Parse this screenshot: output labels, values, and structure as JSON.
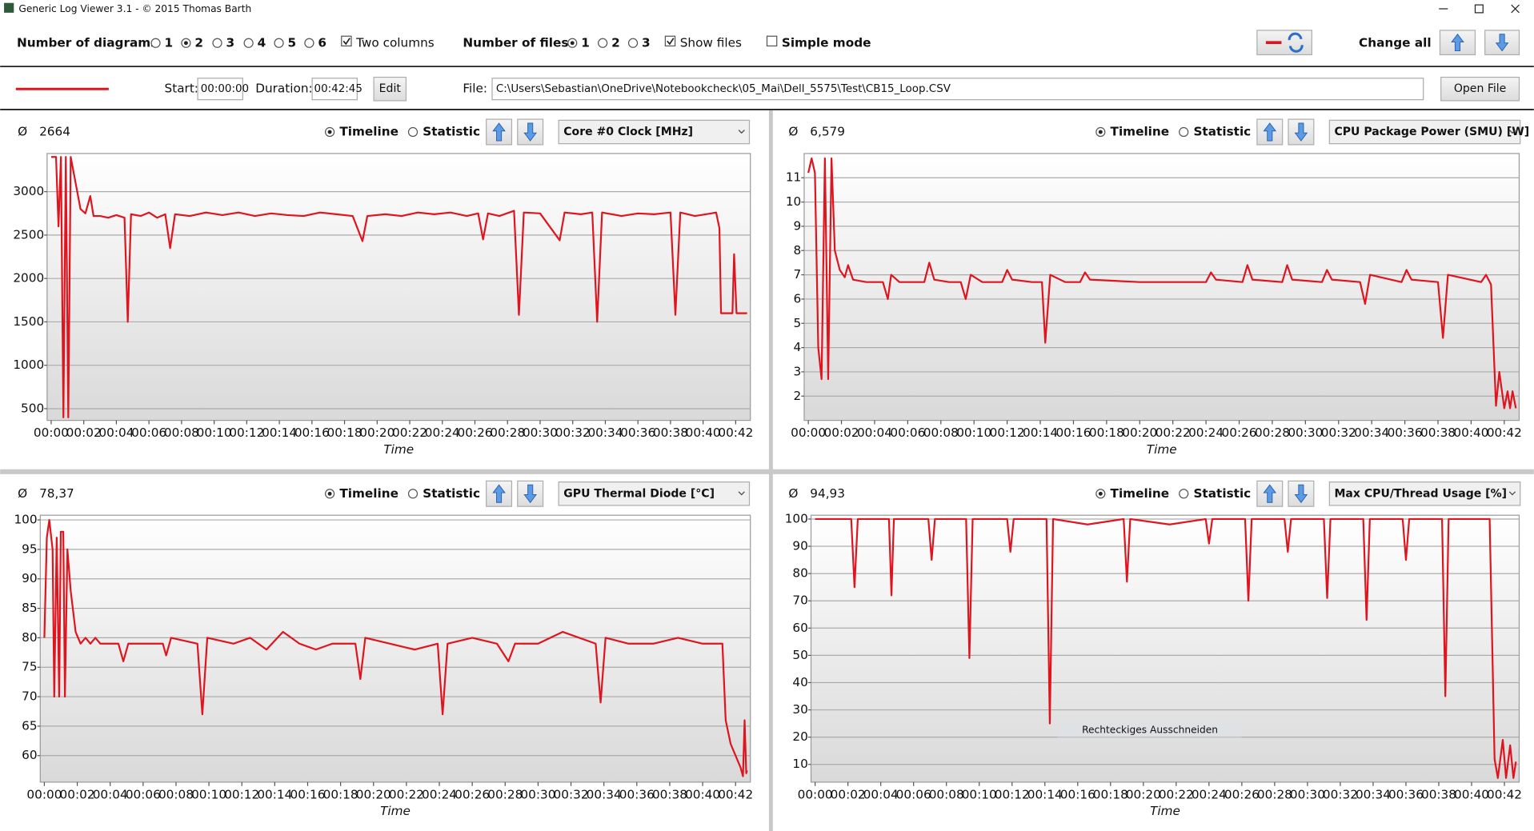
{
  "window": {
    "title": "Generic Log Viewer 3.1 - © 2015 Thomas Barth"
  },
  "toolbar": {
    "diagrams_label": "Number of diagrams",
    "diagram_options": [
      "1",
      "2",
      "3",
      "4",
      "5",
      "6"
    ],
    "two_columns": "Two columns",
    "files_label": "Number of files",
    "file_options": [
      "1",
      "2",
      "3"
    ],
    "show_files": "Show files",
    "simple_mode": "Simple mode",
    "change_all": "Change all"
  },
  "file_bar": {
    "start_label": "Start:",
    "start": "00:00:00",
    "duration_label": "Duration:",
    "duration": "00:42:45",
    "edit": "Edit",
    "file_label": "File:",
    "file_path": "C:\\Users\\Sebastian\\OneDrive\\Notebookcheck\\05_Mai\\Dell_5575\\Test\\CB15_Loop.CSV",
    "open_file": "Open File"
  },
  "chart_data": [
    {
      "type": "line",
      "average_label": "Ø",
      "average": "2664",
      "timeline": "Timeline",
      "statistic": "Statistic",
      "title": "Core #0 Clock [MHz]",
      "xlabel": "Time",
      "grid": true,
      "xlim": [
        -0.25,
        42.9
      ],
      "xticks": [
        {
          "value": 0,
          "label": "00:00"
        },
        {
          "value": 2,
          "label": "00:02"
        },
        {
          "value": 4,
          "label": "00:04"
        },
        {
          "value": 6,
          "label": "00:06"
        },
        {
          "value": 8,
          "label": "00:08"
        },
        {
          "value": 10,
          "label": "00:10"
        },
        {
          "value": 12,
          "label": "00:12"
        },
        {
          "value": 14,
          "label": "00:14"
        },
        {
          "value": 16,
          "label": "00:16"
        },
        {
          "value": 18,
          "label": "00:18"
        },
        {
          "value": 20,
          "label": "00:20"
        },
        {
          "value": 22,
          "label": "00:22"
        },
        {
          "value": 24,
          "label": "00:24"
        },
        {
          "value": 26,
          "label": "00:26"
        },
        {
          "value": 28,
          "label": "00:28"
        },
        {
          "value": 30,
          "label": "00:30"
        },
        {
          "value": 32,
          "label": "00:32"
        },
        {
          "value": 34,
          "label": "00:34"
        },
        {
          "value": 36,
          "label": "00:36"
        },
        {
          "value": 38,
          "label": "00:38"
        },
        {
          "value": 40,
          "label": "00:40"
        },
        {
          "value": 42,
          "label": "00:42"
        }
      ],
      "ylim": [
        365,
        3440
      ],
      "yticks": [
        500,
        1000,
        1500,
        2000,
        2500,
        3000
      ],
      "x": [
        0,
        0.3,
        0.45,
        0.6,
        0.75,
        0.9,
        1.05,
        1.2,
        1.5,
        1.8,
        2.1,
        2.4,
        2.6,
        3,
        3.5,
        4,
        4.5,
        4.7,
        4.9,
        5.5,
        6,
        6.5,
        7,
        7.3,
        7.6,
        8.5,
        9.5,
        10.5,
        11.5,
        12.5,
        13.5,
        14.5,
        15.5,
        16.5,
        17.5,
        18.5,
        19.1,
        19.4,
        20.5,
        21.5,
        22.5,
        23.5,
        24.5,
        25.5,
        26.2,
        26.5,
        26.8,
        27.5,
        28.4,
        28.7,
        29,
        30,
        31.2,
        31.5,
        32.5,
        33.2,
        33.5,
        33.8,
        35,
        36,
        37,
        38,
        38.3,
        38.6,
        39.5,
        40.5,
        40.8,
        41,
        41.1,
        41.8,
        41.9,
        42.05,
        42.7
      ],
      "series": [
        {
          "color": "#e0141e",
          "values": [
            3400,
            3400,
            2600,
            3400,
            400,
            3400,
            400,
            3400,
            3100,
            2800,
            2750,
            2950,
            2720,
            2720,
            2700,
            2730,
            2700,
            1500,
            2740,
            2720,
            2760,
            2700,
            2740,
            2350,
            2740,
            2720,
            2760,
            2730,
            2760,
            2720,
            2750,
            2730,
            2720,
            2760,
            2740,
            2720,
            2430,
            2720,
            2740,
            2720,
            2760,
            2740,
            2760,
            2720,
            2750,
            2450,
            2750,
            2720,
            2780,
            1580,
            2760,
            2750,
            2440,
            2760,
            2740,
            2760,
            1500,
            2760,
            2720,
            2750,
            2740,
            2760,
            1580,
            2760,
            2720,
            2750,
            2760,
            2580,
            1600,
            1600,
            2280,
            1600,
            1600
          ]
        }
      ]
    },
    {
      "type": "line",
      "average_label": "Ø",
      "average": "6,579",
      "timeline": "Timeline",
      "statistic": "Statistic",
      "title": "CPU Package Power (SMU) [W]",
      "xlabel": "Time",
      "grid": true,
      "xlim": [
        -0.25,
        42.9
      ],
      "xticks": [
        {
          "value": 0,
          "label": "00:00"
        },
        {
          "value": 2,
          "label": "00:02"
        },
        {
          "value": 4,
          "label": "00:04"
        },
        {
          "value": 6,
          "label": "00:06"
        },
        {
          "value": 8,
          "label": "00:08"
        },
        {
          "value": 10,
          "label": "00:10"
        },
        {
          "value": 12,
          "label": "00:12"
        },
        {
          "value": 14,
          "label": "00:14"
        },
        {
          "value": 16,
          "label": "00:16"
        },
        {
          "value": 18,
          "label": "00:18"
        },
        {
          "value": 20,
          "label": "00:20"
        },
        {
          "value": 22,
          "label": "00:22"
        },
        {
          "value": 24,
          "label": "00:24"
        },
        {
          "value": 26,
          "label": "00:26"
        },
        {
          "value": 28,
          "label": "00:28"
        },
        {
          "value": 30,
          "label": "00:30"
        },
        {
          "value": 32,
          "label": "00:32"
        },
        {
          "value": 34,
          "label": "00:34"
        },
        {
          "value": 36,
          "label": "00:36"
        },
        {
          "value": 38,
          "label": "00:38"
        },
        {
          "value": 40,
          "label": "00:40"
        },
        {
          "value": 42,
          "label": "00:42"
        }
      ],
      "ylim": [
        1,
        12
      ],
      "yticks": [
        2,
        3,
        4,
        5,
        6,
        7,
        8,
        9,
        10,
        11
      ],
      "x": [
        0,
        0.2,
        0.4,
        0.6,
        0.8,
        1.0,
        1.2,
        1.4,
        1.6,
        1.9,
        2.2,
        2.4,
        2.7,
        3.5,
        4.5,
        4.8,
        5.0,
        5.5,
        6.5,
        7.0,
        7.3,
        7.6,
        8.5,
        9.2,
        9.5,
        9.8,
        10.5,
        11.7,
        12.0,
        12.3,
        13.5,
        14.1,
        14.3,
        14.6,
        15.5,
        16.4,
        16.7,
        17.0,
        20,
        24.0,
        24.3,
        24.6,
        26.2,
        26.5,
        26.8,
        28.6,
        28.9,
        29.2,
        31.0,
        31.3,
        31.6,
        33.3,
        33.6,
        33.9,
        35.8,
        36.1,
        36.4,
        38.0,
        38.3,
        38.6,
        40.6,
        40.9,
        41.2,
        41.5,
        41.7,
        42.0,
        42.2,
        42.35,
        42.5,
        42.7
      ],
      "series": [
        {
          "color": "#e0141e",
          "values": [
            11.2,
            11.8,
            11.2,
            4,
            2.7,
            11.8,
            2.7,
            11.8,
            8,
            7.2,
            6.9,
            7.4,
            6.8,
            6.7,
            6.7,
            6.0,
            7.0,
            6.7,
            6.7,
            6.7,
            7.5,
            6.8,
            6.7,
            6.7,
            6.0,
            7.0,
            6.7,
            6.7,
            7.2,
            6.8,
            6.7,
            6.7,
            4.2,
            7.0,
            6.7,
            6.7,
            7.1,
            6.8,
            6.7,
            6.7,
            7.1,
            6.8,
            6.7,
            7.4,
            6.8,
            6.7,
            7.4,
            6.8,
            6.7,
            7.2,
            6.8,
            6.7,
            5.8,
            7.0,
            6.7,
            7.2,
            6.8,
            6.7,
            4.4,
            7.0,
            6.7,
            7.0,
            6.6,
            1.6,
            3.0,
            1.5,
            2.2,
            1.5,
            2.2,
            1.5
          ]
        }
      ]
    },
    {
      "type": "line",
      "average_label": "Ø",
      "average": "78,37",
      "timeline": "Timeline",
      "statistic": "Statistic",
      "title": "GPU Thermal Diode [°C]",
      "xlabel": "Time",
      "grid": true,
      "xlim": [
        -0.25,
        42.9
      ],
      "xticks": [
        {
          "value": 0,
          "label": "00:00"
        },
        {
          "value": 2,
          "label": "00:02"
        },
        {
          "value": 4,
          "label": "00:04"
        },
        {
          "value": 6,
          "label": "00:06"
        },
        {
          "value": 8,
          "label": "00:08"
        },
        {
          "value": 10,
          "label": "00:10"
        },
        {
          "value": 12,
          "label": "00:12"
        },
        {
          "value": 14,
          "label": "00:14"
        },
        {
          "value": 16,
          "label": "00:16"
        },
        {
          "value": 18,
          "label": "00:18"
        },
        {
          "value": 20,
          "label": "00:20"
        },
        {
          "value": 22,
          "label": "00:22"
        },
        {
          "value": 24,
          "label": "00:24"
        },
        {
          "value": 26,
          "label": "00:26"
        },
        {
          "value": 28,
          "label": "00:28"
        },
        {
          "value": 30,
          "label": "00:30"
        },
        {
          "value": 32,
          "label": "00:32"
        },
        {
          "value": 34,
          "label": "00:34"
        },
        {
          "value": 36,
          "label": "00:36"
        },
        {
          "value": 38,
          "label": "00:38"
        },
        {
          "value": 40,
          "label": "00:40"
        },
        {
          "value": 42,
          "label": "00:42"
        }
      ],
      "ylim": [
        55.5,
        100.8
      ],
      "yticks": [
        60,
        65,
        70,
        75,
        80,
        85,
        90,
        95,
        100
      ],
      "x": [
        0,
        0.15,
        0.3,
        0.5,
        0.6,
        0.75,
        0.9,
        1.0,
        1.15,
        1.25,
        1.4,
        1.6,
        1.9,
        2.2,
        2.5,
        2.8,
        3.1,
        3.4,
        4.5,
        4.8,
        5.1,
        6.5,
        7.2,
        7.4,
        7.7,
        9.3,
        9.6,
        9.9,
        11.5,
        12.5,
        13.5,
        14.5,
        15.5,
        16.5,
        17.5,
        18.9,
        19.2,
        19.5,
        21,
        22.5,
        23.9,
        24.2,
        24.5,
        26,
        27.5,
        28.2,
        28.6,
        30,
        31.5,
        33.5,
        33.8,
        34.1,
        35.5,
        37,
        38.5,
        40,
        41.2,
        41.4,
        41.7,
        42.0,
        42.3,
        42.45,
        42.55,
        42.65,
        42.7
      ],
      "series": [
        {
          "color": "#e0141e",
          "values": [
            80,
            97,
            100,
            95,
            70,
            97,
            70,
            98,
            98,
            70,
            95,
            88,
            81,
            79,
            80,
            79,
            80,
            79,
            79,
            76,
            79,
            79,
            79,
            77,
            80,
            79,
            67,
            80,
            79,
            80,
            78,
            81,
            79,
            78,
            79,
            79,
            73,
            80,
            79,
            78,
            79,
            67,
            79,
            80,
            79,
            76,
            79,
            79,
            81,
            79,
            69,
            80,
            79,
            79,
            80,
            79,
            79,
            66,
            62,
            60,
            58,
            56.5,
            66,
            57,
            57.5
          ]
        }
      ]
    },
    {
      "type": "line",
      "average_label": "Ø",
      "average": "94,93",
      "timeline": "Timeline",
      "statistic": "Statistic",
      "title": "Max CPU/Thread Usage [%]",
      "xlabel": "Time",
      "grid": true,
      "annotation": "Rechteckiges Ausschneiden",
      "xlim": [
        -0.25,
        42.9
      ],
      "xticks": [
        {
          "value": 0,
          "label": "00:00"
        },
        {
          "value": 2,
          "label": "00:02"
        },
        {
          "value": 4,
          "label": "00:04"
        },
        {
          "value": 6,
          "label": "00:06"
        },
        {
          "value": 8,
          "label": "00:08"
        },
        {
          "value": 10,
          "label": "00:10"
        },
        {
          "value": 12,
          "label": "00:12"
        },
        {
          "value": 14,
          "label": "00:14"
        },
        {
          "value": 16,
          "label": "00:16"
        },
        {
          "value": 18,
          "label": "00:18"
        },
        {
          "value": 20,
          "label": "00:20"
        },
        {
          "value": 22,
          "label": "00:22"
        },
        {
          "value": 24,
          "label": "00:24"
        },
        {
          "value": 26,
          "label": "00:26"
        },
        {
          "value": 28,
          "label": "00:28"
        },
        {
          "value": 30,
          "label": "00:30"
        },
        {
          "value": 32,
          "label": "00:32"
        },
        {
          "value": 34,
          "label": "00:34"
        },
        {
          "value": 36,
          "label": "00:36"
        },
        {
          "value": 38,
          "label": "00:38"
        },
        {
          "value": 40,
          "label": "00:40"
        },
        {
          "value": 42,
          "label": "00:42"
        }
      ],
      "ylim": [
        3.5,
        101.4
      ],
      "yticks": [
        10,
        20,
        30,
        40,
        50,
        60,
        70,
        80,
        90,
        100
      ],
      "x": [
        0,
        2.2,
        2.4,
        2.6,
        4.5,
        4.65,
        4.8,
        6.9,
        7.1,
        7.3,
        9.2,
        9.4,
        9.6,
        11.7,
        11.9,
        12.1,
        14.1,
        14.3,
        14.5,
        16.6,
        18.8,
        19.0,
        19.2,
        21.6,
        23.8,
        24.0,
        24.2,
        26.2,
        26.4,
        26.6,
        28.6,
        28.8,
        29.0,
        31.0,
        31.2,
        31.4,
        33.4,
        33.6,
        33.8,
        35.8,
        36.0,
        36.2,
        38.2,
        38.4,
        38.6,
        41.1,
        41.4,
        41.6,
        41.9,
        42.1,
        42.35,
        42.55,
        42.7
      ],
      "series": [
        {
          "color": "#e0141e",
          "values": [
            100,
            100,
            75,
            100,
            100,
            72,
            100,
            100,
            85,
            100,
            100,
            49,
            100,
            100,
            88,
            100,
            100,
            25,
            100,
            98,
            100,
            77,
            100,
            98,
            100,
            91,
            100,
            100,
            70,
            100,
            100,
            88,
            100,
            100,
            71,
            100,
            100,
            63,
            100,
            100,
            85,
            100,
            100,
            35,
            100,
            100,
            12,
            5,
            19,
            5,
            17,
            5,
            11
          ]
        }
      ]
    }
  ]
}
